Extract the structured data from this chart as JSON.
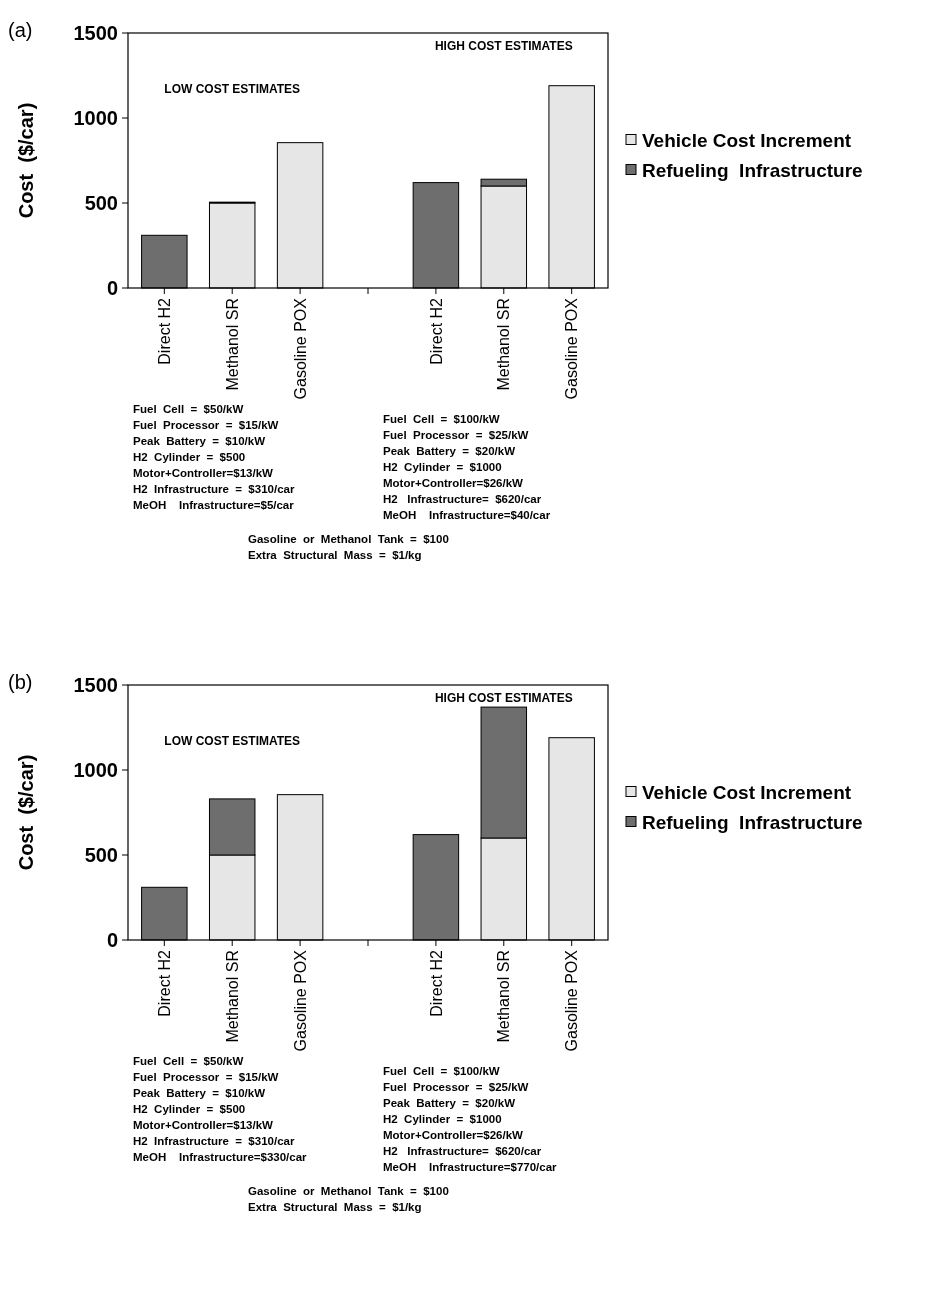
{
  "chart_data": [
    {
      "type": "bar",
      "title": "(a)",
      "ylabel": "Cost  ($/car)",
      "stacked": true,
      "legend": "right",
      "grid": false,
      "categories": [
        "Direct H2",
        "Methanol SR",
        "Gasoline POX",
        null,
        "Direct H2",
        "Methanol SR",
        "Gasoline POX"
      ],
      "ylim": [
        0,
        1500
      ],
      "yticks": [
        0,
        500,
        1000,
        1500
      ],
      "series": [
        {
          "name": "Vehicle Cost Increment",
          "color": "#e6e6e6",
          "values": [
            null,
            500,
            855,
            null,
            null,
            600,
            1190
          ]
        },
        {
          "name": "Refueling  Infrastructure",
          "color": "#6e6e6e",
          "values": [
            310,
            5,
            null,
            null,
            620,
            40,
            null
          ]
        }
      ],
      "annotations": [
        "LOW COST ESTIMATES",
        "HIGH COST ESTIMATES",
        "Fuel  Cell  =  $50/kW\nFuel  Processor  =  $15/kW\nPeak  Battery  =  $10/kW\nH2  Cylinder  =  $500\nMotor+Controller=$13/kW\nH2  Infrastructure  =  $310/car\nMeOH    Infrastructure=$5/car",
        "Fuel  Cell  =  $100/kW\nFuel  Processor  =  $25/kW\nPeak  Battery  =  $20/kW\nH2  Cylinder  =  $1000\nMotor+Controller=$26/kW\nH2   Infrastructure=  $620/car\nMeOH    Infrastructure=$40/car",
        "Gasoline  or  Methanol  Tank  =  $100\nExtra  Structural  Mass  =  $1/kg"
      ]
    },
    {
      "type": "bar",
      "title": "(b)",
      "ylabel": "Cost  ($/car)",
      "stacked": true,
      "legend": "right",
      "grid": false,
      "categories": [
        "Direct H2",
        "Methanol SR",
        "Gasoline POX",
        null,
        "Direct H2",
        "Methanol SR",
        "Gasoline POX"
      ],
      "ylim": [
        0,
        1500
      ],
      "yticks": [
        0,
        500,
        1000,
        1500
      ],
      "series": [
        {
          "name": "Vehicle Cost Increment",
          "color": "#e6e6e6",
          "values": [
            null,
            500,
            855,
            null,
            null,
            600,
            1190
          ]
        },
        {
          "name": "Refueling  Infrastructure",
          "color": "#6e6e6e",
          "values": [
            310,
            330,
            null,
            null,
            620,
            770,
            null
          ]
        }
      ],
      "annotations": [
        "LOW COST ESTIMATES",
        "HIGH COST ESTIMATES",
        "Fuel  Cell  =  $50/kW\nFuel  Processor  =  $15/kW\nPeak  Battery  =  $10/kW\nH2  Cylinder  =  $500\nMotor+Controller=$13/kW\nH2  Infrastructure  =  $310/car\nMeOH    Infrastructure=$330/car",
        "Fuel  Cell  =  $100/kW\nFuel  Processor  =  $25/kW\nPeak  Battery  =  $20/kW\nH2  Cylinder  =  $1000\nMotor+Controller=$26/kW\nH2   Infrastructure=  $620/car\nMeOH    Infrastructure=$770/car",
        "Gasoline  or  Methanol  Tank  =  $100\nExtra  Structural  Mass  =  $1/kg"
      ]
    }
  ]
}
